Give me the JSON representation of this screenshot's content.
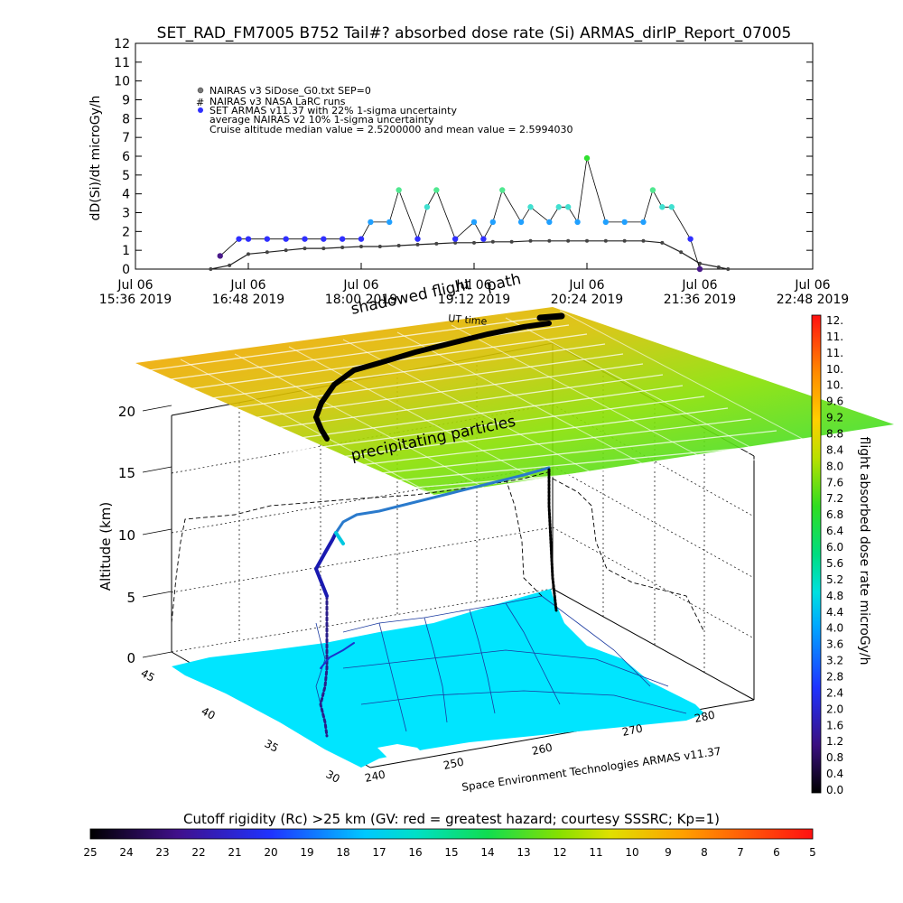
{
  "title": "SET_RAD_FM7005   B752 Tail#? absorbed dose rate (Si) ARMAS_dirIP_Report_07005",
  "top_chart": {
    "ylabel": "dD(Si)/dt microGy/h",
    "yticks": [
      "0",
      "1",
      "2",
      "3",
      "4",
      "5",
      "6",
      "7",
      "8",
      "9",
      "10",
      "11",
      "12"
    ],
    "xticks": [
      {
        "line1": "Jul 06",
        "line2": "15:36 2019"
      },
      {
        "line1": "Jul 06",
        "line2": "16:48 2019"
      },
      {
        "line1": "Jul 06",
        "line2": "18:00 2019"
      },
      {
        "line1": "Jul 06",
        "line2": "19:12 2019"
      },
      {
        "line1": "Jul 06",
        "line2": "20:24 2019"
      },
      {
        "line1": "Jul 06",
        "line2": "21:36 2019"
      },
      {
        "line1": "Jul 06",
        "line2": "22:48 2019"
      }
    ],
    "legend": [
      "NAIRAS v3 SiDose_G0.txt SEP=0",
      "NAIRAS v3 NASA LaRC runs",
      "SET ARMAS v11.37 with 22% 1-sigma uncertainty",
      "average NAIRAS v2 10% 1-sigma uncertainty",
      "Cruise altitude median value = 2.5200000 and mean value = 2.5994030"
    ]
  },
  "scene": {
    "label_shadowed": "shadowed flight",
    "label_path": "path",
    "label_ut": "UT time",
    "label_precip": "precipitating particles",
    "zlabel": "Altitude (km)",
    "zticks": [
      "0",
      "5",
      "10",
      "15",
      "20"
    ],
    "lat_ticks": [
      "45",
      "40",
      "35",
      "30"
    ],
    "lon_ticks": [
      "240",
      "250",
      "260",
      "270",
      "280"
    ],
    "credit": "Space Environment Technologies ARMAS v11.37"
  },
  "right_bar": {
    "label": "flight absorbed dose rate microGy/h",
    "ticks": [
      "12.",
      "11.",
      "11.",
      "10.",
      "10.",
      "9.6",
      "9.2",
      "8.8",
      "8.4",
      "8.0",
      "7.6",
      "7.2",
      "6.8",
      "6.4",
      "6.0",
      "5.6",
      "5.2",
      "4.8",
      "4.4",
      "4.0",
      "3.6",
      "3.2",
      "2.8",
      "2.4",
      "2.0",
      "1.6",
      "1.2",
      "0.8",
      "0.4",
      "0.0"
    ]
  },
  "bottom_bar": {
    "label": "Cutoff rigidity (Rc) >25 km (GV: red = greatest hazard; courtesy SSSRC; Kp=1)",
    "ticks": [
      "25",
      "24",
      "23",
      "22",
      "21",
      "20",
      "19",
      "18",
      "17",
      "16",
      "15",
      "14",
      "13",
      "12",
      "11",
      "10",
      "9",
      "8",
      "7",
      "6",
      "5"
    ]
  },
  "colors": {
    "armas": "#2f2fff",
    "nairas": "#222222",
    "map": "#00e5ff"
  },
  "chart_data": {
    "type": "scatter",
    "title": "SET_RAD_FM7005   B752 Tail#? absorbed dose rate (Si) ARMAS_dirIP_Report_07005",
    "xlabel": "",
    "ylabel": "dD(Si)/dt microGy/h",
    "xlim": [
      "2019-07-06 15:36",
      "2019-07-06 22:48"
    ],
    "ylim": [
      0,
      12
    ],
    "grid": false,
    "legend_position": "top-left",
    "series": [
      {
        "name": "NAIRAS v3 SiDose_G0.txt SEP=0",
        "x": [
          "16:24",
          "16:36",
          "16:48",
          "17:00",
          "17:12",
          "17:24",
          "17:36",
          "17:48",
          "18:00",
          "18:12",
          "18:24",
          "18:36",
          "18:48",
          "19:00",
          "19:12",
          "19:24",
          "19:36",
          "19:48",
          "20:00",
          "20:12",
          "20:24",
          "20:36",
          "20:48",
          "21:00",
          "21:12",
          "21:24",
          "21:36",
          "21:48",
          "21:54"
        ],
        "y": [
          0.0,
          0.2,
          0.8,
          0.9,
          1.0,
          1.1,
          1.1,
          1.15,
          1.2,
          1.2,
          1.25,
          1.3,
          1.35,
          1.4,
          1.4,
          1.45,
          1.45,
          1.5,
          1.5,
          1.5,
          1.5,
          1.5,
          1.5,
          1.5,
          1.4,
          0.9,
          0.3,
          0.1,
          0.0
        ]
      },
      {
        "name": "SET ARMAS v11.37 with 22% 1-sigma uncertainty",
        "x": [
          "16:30",
          "16:42",
          "16:48",
          "17:00",
          "17:12",
          "17:24",
          "17:36",
          "17:48",
          "18:00",
          "18:06",
          "18:18",
          "18:24",
          "18:36",
          "18:42",
          "18:48",
          "19:00",
          "19:12",
          "19:18",
          "19:24",
          "19:30",
          "19:42",
          "19:48",
          "20:00",
          "20:06",
          "20:12",
          "20:18",
          "20:24",
          "20:36",
          "20:48",
          "21:00",
          "21:06",
          "21:12",
          "21:18",
          "21:30",
          "21:36"
        ],
        "y": [
          0.7,
          1.6,
          1.6,
          1.6,
          1.6,
          1.6,
          1.6,
          1.6,
          1.6,
          2.5,
          2.5,
          4.2,
          1.6,
          3.3,
          4.2,
          1.6,
          2.5,
          1.6,
          2.5,
          4.2,
          2.5,
          3.3,
          2.5,
          3.3,
          3.3,
          2.5,
          5.9,
          2.5,
          2.5,
          2.5,
          4.2,
          3.3,
          3.3,
          1.6,
          0.0
        ]
      }
    ],
    "right_colorbar": {
      "label": "flight absorbed dose rate microGy/h",
      "range": [
        0.0,
        12.0
      ]
    },
    "bottom_colorbar": {
      "label": "Cutoff rigidity (Rc) >25 km (GV: red = greatest hazard; courtesy SSSRC; Kp=1)",
      "range": [
        25,
        5
      ]
    }
  }
}
